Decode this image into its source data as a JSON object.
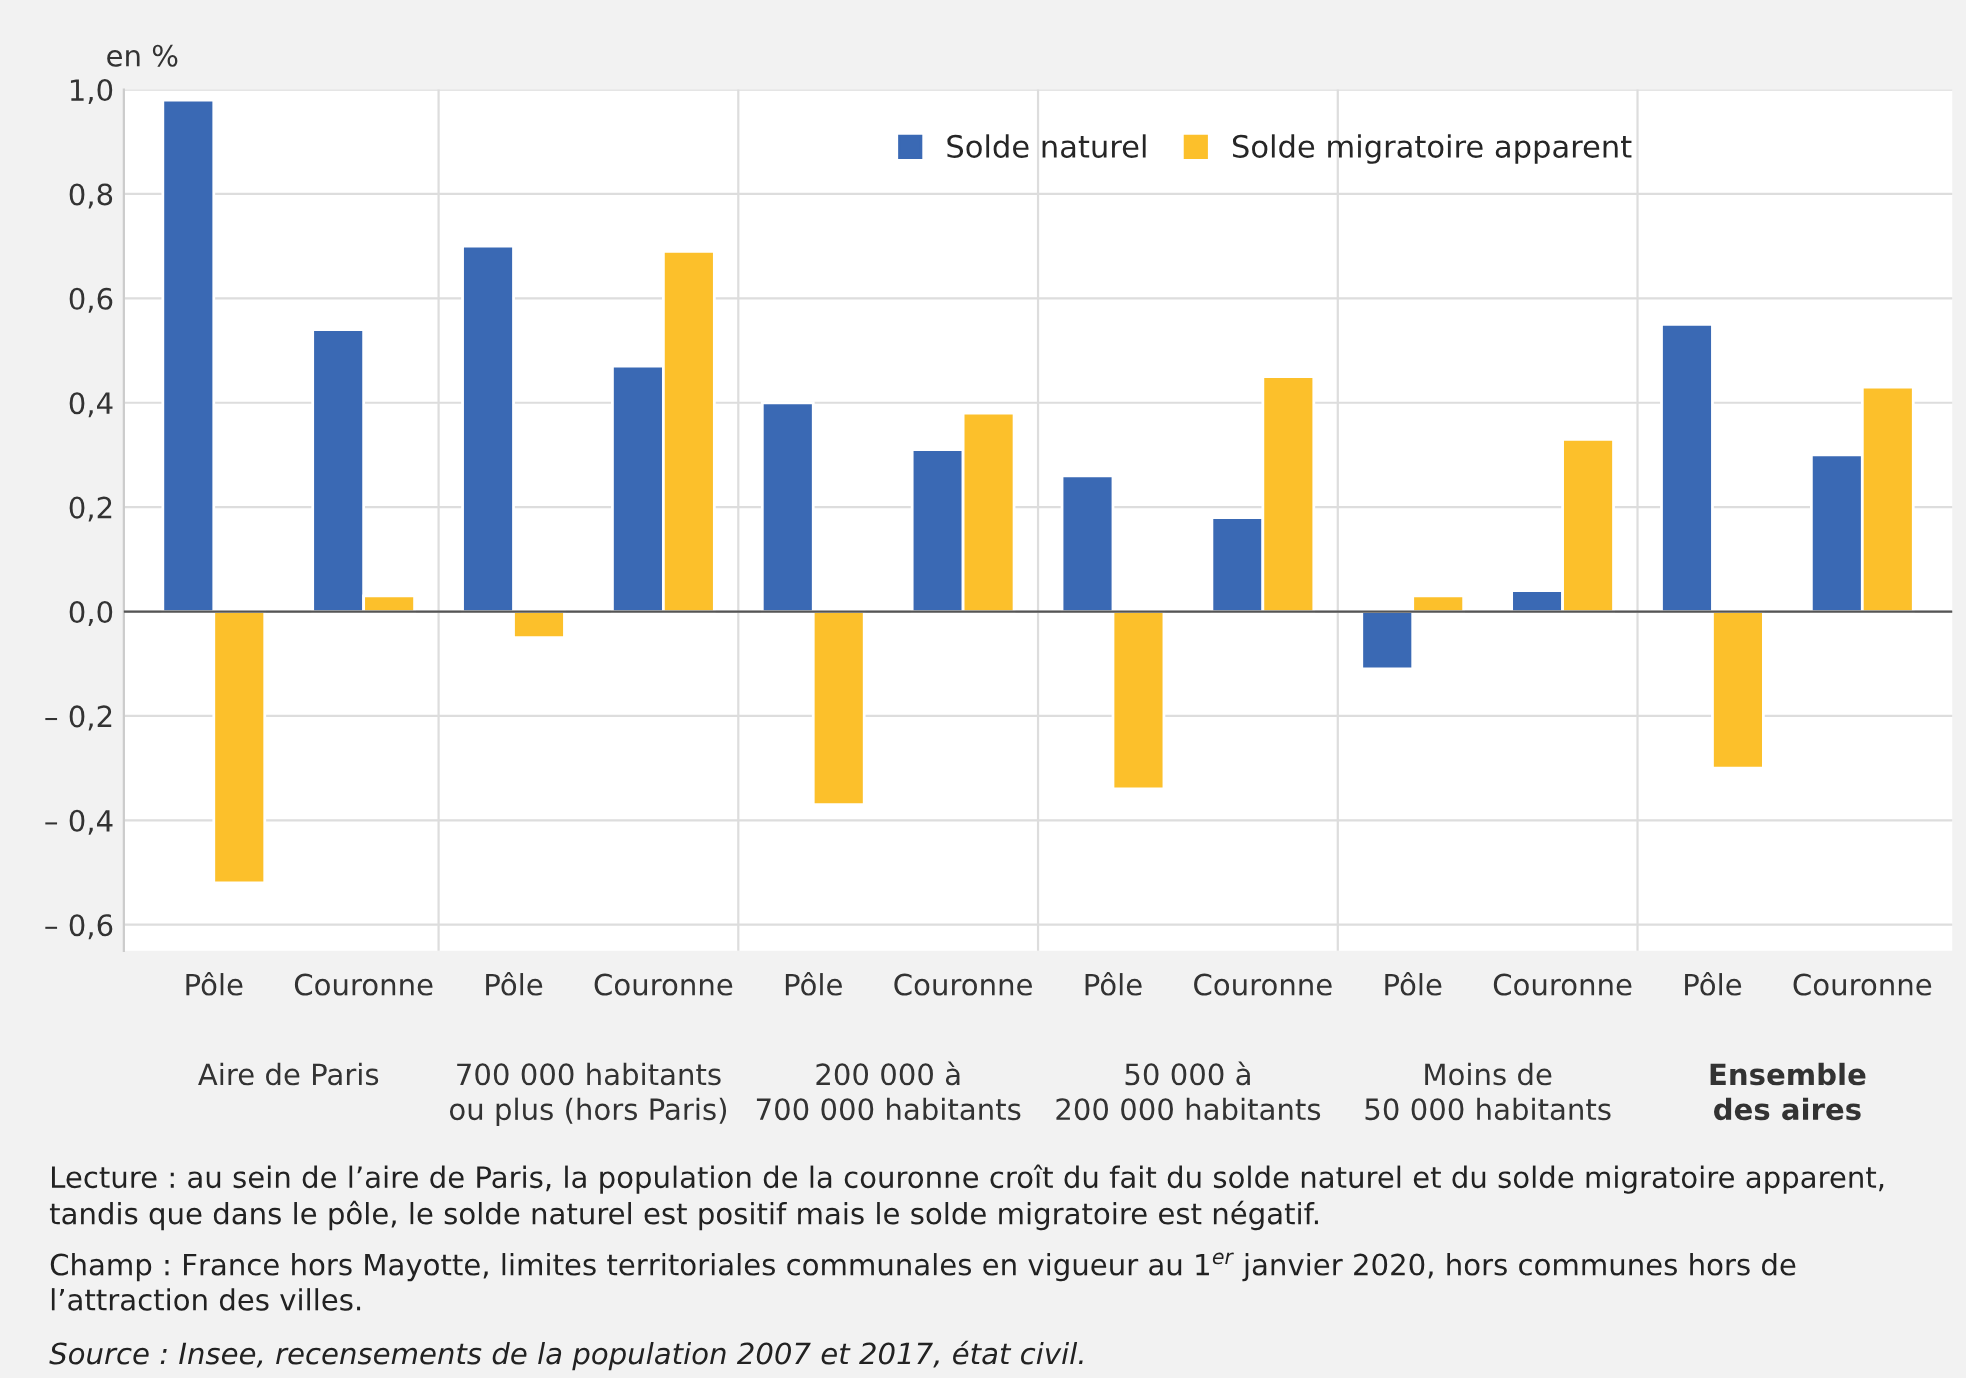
{
  "chart_data": {
    "type": "bar",
    "ylabel": "en %",
    "categories": [
      "Pôle",
      "Couronne",
      "Pôle",
      "Couronne",
      "Pôle",
      "Couronne",
      "Pôle",
      "Couronne",
      "Pôle",
      "Couronne",
      "Pôle",
      "Couronne"
    ],
    "series": [
      {
        "name": "Solde naturel",
        "color": "#3a69b4",
        "values": [
          0.98,
          0.54,
          0.7,
          0.47,
          0.4,
          0.31,
          0.26,
          0.18,
          -0.11,
          0.04,
          0.55,
          0.3
        ]
      },
      {
        "name": "Solde migratoire apparent",
        "color": "#fcc02b",
        "values": [
          -0.52,
          0.03,
          -0.05,
          0.69,
          -0.37,
          0.38,
          -0.34,
          0.45,
          0.03,
          0.33,
          -0.3,
          0.43
        ]
      }
    ],
    "ylim": [
      -0.65,
      1.0
    ],
    "yticks": [
      {
        "value": -0.6,
        "label": "– 0,6"
      },
      {
        "value": -0.4,
        "label": "– 0,4"
      },
      {
        "value": -0.2,
        "label": "– 0,2"
      },
      {
        "value": 0.0,
        "label": "0,0"
      },
      {
        "value": 0.2,
        "label": "0,2"
      },
      {
        "value": 0.4,
        "label": "0,4"
      },
      {
        "value": 0.6,
        "label": "0,6"
      },
      {
        "value": 0.8,
        "label": "0,8"
      },
      {
        "value": 1.0,
        "label": "1,0"
      }
    ],
    "grid": "y",
    "legend": "top right",
    "annotations": [
      "Aire de Paris",
      "700 000 habitants\nou plus (hors Paris)",
      "200 000 à\n700 000 habitants",
      "50 000 à\n200 000 habitants",
      "Moins de\n50 000 habitants",
      "Ensemble\ndes aires",
      "Lecture : au sein de l’aire de Paris, la population de la couronne croît du fait du solde naturel et du solde migratoire apparent,\ntandis que dans le pôle, le solde naturel est positif mais le solde migratoire est négatif.",
      "Champ : France hors Mayotte, limites territoriales communales en vigueur au 1$^{er}$ janvier 2020, hors communes hors de\nl’attraction des villes.",
      "Source : Insee, recensements de la population 2007 et 2017, état civil."
    ]
  }
}
